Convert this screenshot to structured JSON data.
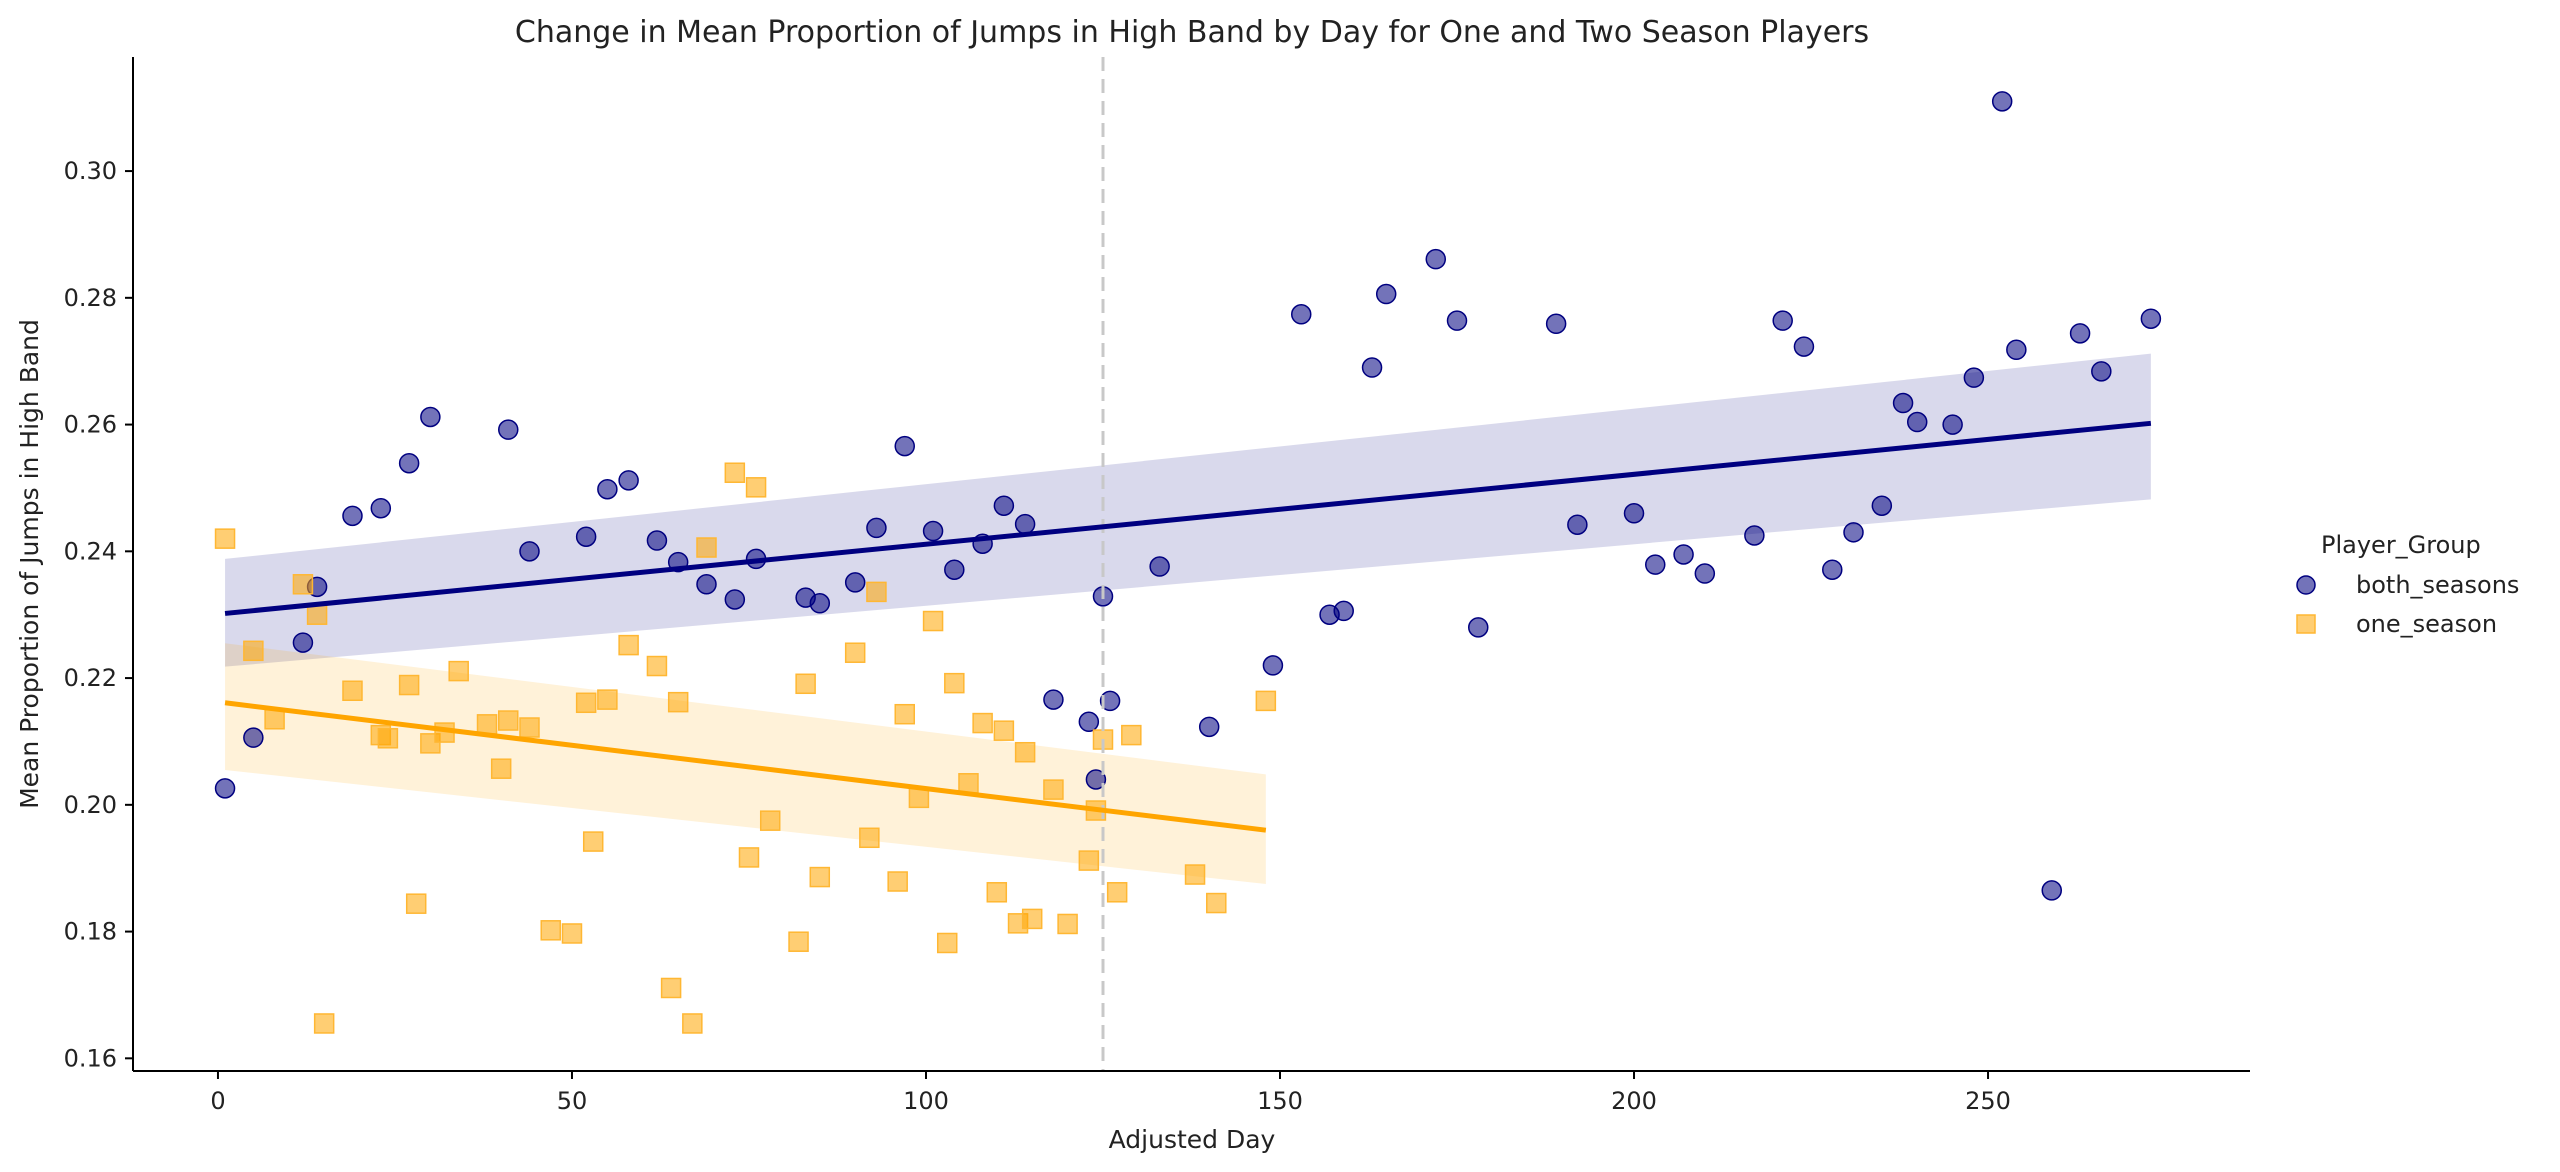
{
  "chart_data": {
    "type": "scatter",
    "title": "Change in Mean Proportion of Jumps in High Band by Day for One and Two Season Players",
    "xlabel": "Adjusted Day",
    "ylabel": "Mean Proportion of Jumps in High Band",
    "xlim": [
      -12,
      287
    ],
    "ylim": [
      0.158,
      0.318
    ],
    "x_ticks": [
      0,
      50,
      100,
      150,
      200,
      250
    ],
    "y_ticks": [
      0.16,
      0.18,
      0.2,
      0.22,
      0.24,
      0.26,
      0.28,
      0.3
    ],
    "y_tick_labels": [
      "0.16",
      "0.18",
      "0.20",
      "0.22",
      "0.24",
      "0.26",
      "0.28",
      "0.30"
    ],
    "vline_x": 125,
    "grid": false,
    "legend": {
      "title": "Player_Group",
      "placement": "right"
    },
    "series": [
      {
        "name": "both_seasons",
        "marker": "circle",
        "color": "#000080",
        "points": [
          [
            1,
            0.2026
          ],
          [
            5,
            0.2106
          ],
          [
            12,
            0.2256
          ],
          [
            14,
            0.2344
          ],
          [
            19,
            0.2456
          ],
          [
            23,
            0.2468
          ],
          [
            27,
            0.2539
          ],
          [
            30,
            0.2612
          ],
          [
            41,
            0.2592
          ],
          [
            44,
            0.24
          ],
          [
            52,
            0.2423
          ],
          [
            55,
            0.2498
          ],
          [
            58,
            0.2512
          ],
          [
            62,
            0.2417
          ],
          [
            65,
            0.2383
          ],
          [
            69,
            0.2348
          ],
          [
            73,
            0.2324
          ],
          [
            76,
            0.2388
          ],
          [
            83,
            0.2327
          ],
          [
            85,
            0.2318
          ],
          [
            90,
            0.2351
          ],
          [
            93,
            0.2437
          ],
          [
            97,
            0.2566
          ],
          [
            101,
            0.2432
          ],
          [
            104,
            0.2371
          ],
          [
            108,
            0.2412
          ],
          [
            111,
            0.2472
          ],
          [
            114,
            0.2443
          ],
          [
            118,
            0.2166
          ],
          [
            123,
            0.2131
          ],
          [
            124,
            0.204
          ],
          [
            125,
            0.2329
          ],
          [
            126,
            0.2164
          ],
          [
            133,
            0.2376
          ],
          [
            140,
            0.2123
          ],
          [
            149,
            0.222
          ],
          [
            153,
            0.2774
          ],
          [
            157,
            0.23
          ],
          [
            159,
            0.2306
          ],
          [
            163,
            0.269
          ],
          [
            165,
            0.2806
          ],
          [
            172,
            0.2861
          ],
          [
            175,
            0.2764
          ],
          [
            178,
            0.228
          ],
          [
            189,
            0.2759
          ],
          [
            192,
            0.2442
          ],
          [
            200,
            0.246
          ],
          [
            203,
            0.2379
          ],
          [
            207,
            0.2395
          ],
          [
            210,
            0.2365
          ],
          [
            217,
            0.2425
          ],
          [
            221,
            0.2764
          ],
          [
            224,
            0.2723
          ],
          [
            228,
            0.2371
          ],
          [
            231,
            0.243
          ],
          [
            235,
            0.2472
          ],
          [
            238,
            0.2634
          ],
          [
            240,
            0.2604
          ],
          [
            245,
            0.26
          ],
          [
            248,
            0.2674
          ],
          [
            252,
            0.311
          ],
          [
            254,
            0.2718
          ],
          [
            259,
            0.1865
          ],
          [
            263,
            0.2744
          ],
          [
            266,
            0.2684
          ],
          [
            273,
            0.2767
          ]
        ],
        "regression": {
          "x_range": [
            1,
            273
          ],
          "y_range": [
            0.2302,
            0.2602
          ],
          "ci_lower": [
            0.2218,
            0.2482
          ],
          "ci_upper": [
            0.2388,
            0.2712
          ]
        }
      },
      {
        "name": "one_season",
        "marker": "square",
        "color": "#FFA500",
        "points": [
          [
            1,
            0.242
          ],
          [
            5,
            0.2243
          ],
          [
            8,
            0.2135
          ],
          [
            12,
            0.2348
          ],
          [
            14,
            0.23
          ],
          [
            15,
            0.1655
          ],
          [
            19,
            0.218
          ],
          [
            23,
            0.211
          ],
          [
            24,
            0.2105
          ],
          [
            27,
            0.2189
          ],
          [
            28,
            0.1844
          ],
          [
            30,
            0.2097
          ],
          [
            32,
            0.2114
          ],
          [
            34,
            0.2211
          ],
          [
            38,
            0.2127
          ],
          [
            40,
            0.2057
          ],
          [
            41,
            0.2133
          ],
          [
            44,
            0.2122
          ],
          [
            47,
            0.1802
          ],
          [
            50,
            0.1797
          ],
          [
            52,
            0.2161
          ],
          [
            53,
            0.1942
          ],
          [
            55,
            0.2166
          ],
          [
            58,
            0.2252
          ],
          [
            62,
            0.2219
          ],
          [
            64,
            0.1711
          ],
          [
            65,
            0.2162
          ],
          [
            67,
            0.1655
          ],
          [
            69,
            0.2406
          ],
          [
            73,
            0.2524
          ],
          [
            75,
            0.1917
          ],
          [
            76,
            0.2501
          ],
          [
            78,
            0.1975
          ],
          [
            82,
            0.1784
          ],
          [
            83,
            0.2191
          ],
          [
            85,
            0.1886
          ],
          [
            90,
            0.224
          ],
          [
            92,
            0.1948
          ],
          [
            93,
            0.2336
          ],
          [
            96,
            0.1879
          ],
          [
            97,
            0.2143
          ],
          [
            99,
            0.2011
          ],
          [
            101,
            0.229
          ],
          [
            103,
            0.1782
          ],
          [
            104,
            0.2192
          ],
          [
            106,
            0.2034
          ],
          [
            108,
            0.2129
          ],
          [
            110,
            0.1862
          ],
          [
            111,
            0.2117
          ],
          [
            113,
            0.1813
          ],
          [
            114,
            0.2083
          ],
          [
            115,
            0.182
          ],
          [
            118,
            0.2024
          ],
          [
            120,
            0.1812
          ],
          [
            123,
            0.1912
          ],
          [
            124,
            0.1991
          ],
          [
            125,
            0.2103
          ],
          [
            127,
            0.1862
          ],
          [
            129,
            0.211
          ],
          [
            138,
            0.189
          ],
          [
            141,
            0.1845
          ],
          [
            148,
            0.2164
          ]
        ],
        "regression": {
          "x_range": [
            1,
            148
          ],
          "y_range": [
            0.2161,
            0.196
          ],
          "ci_lower": [
            0.2055,
            0.1875
          ],
          "ci_upper": [
            0.2255,
            0.2048
          ]
        }
      }
    ]
  }
}
